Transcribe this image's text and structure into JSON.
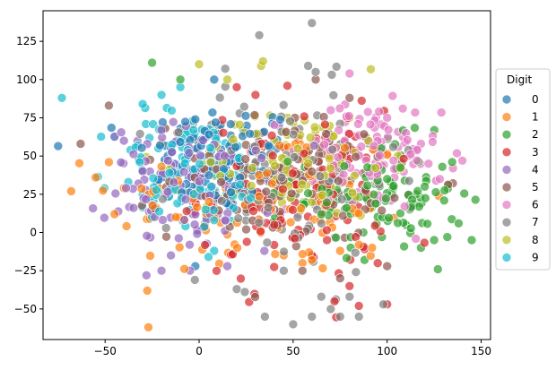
{
  "chart_data": {
    "type": "scatter",
    "title": "",
    "xlabel": "",
    "ylabel": "",
    "xlim": [
      -83,
      155
    ],
    "ylim": [
      -70,
      145
    ],
    "x_ticks": [
      -50,
      0,
      50,
      100,
      150
    ],
    "y_ticks": [
      -50,
      -25,
      0,
      25,
      50,
      75,
      100,
      125
    ],
    "grid": false,
    "legend": {
      "title": "Digit",
      "placement": "right-outside"
    },
    "series": [
      {
        "name": "0",
        "color": "#1f77b4",
        "center": [
          10,
          48
        ],
        "spread": [
          22,
          18
        ],
        "points": [
          [
            -2,
            -22
          ],
          [
            8,
            100
          ],
          [
            -10,
            68
          ],
          [
            3,
            62
          ],
          [
            18,
            55
          ],
          [
            -15,
            40
          ],
          [
            25,
            30
          ]
        ]
      },
      {
        "name": "1",
        "color": "#ff7f0e",
        "center": [
          35,
          20
        ],
        "spread": [
          40,
          25
        ],
        "points": [
          [
            -68,
            27
          ],
          [
            -55,
            36
          ],
          [
            -48,
            46
          ],
          [
            -45,
            12
          ],
          [
            -40,
            29
          ],
          [
            -20,
            58
          ],
          [
            60,
            -18
          ],
          [
            75,
            -12
          ],
          [
            85,
            -8
          ],
          [
            92,
            -10
          ],
          [
            55,
            -20
          ],
          [
            45,
            -15
          ]
        ]
      },
      {
        "name": "2",
        "color": "#2ca02c",
        "center": [
          95,
          25
        ],
        "spread": [
          22,
          18
        ],
        "points": [
          [
            -25,
            111
          ],
          [
            -10,
            100
          ],
          [
            145,
            -5
          ],
          [
            138,
            6
          ],
          [
            132,
            -3
          ],
          [
            127,
            -24
          ],
          [
            125,
            -5
          ],
          [
            118,
            -10
          ],
          [
            112,
            15
          ],
          [
            88,
            -18
          ],
          [
            100,
            35
          ],
          [
            110,
            5
          ],
          [
            120,
            30
          ]
        ]
      },
      {
        "name": "3",
        "color": "#d62728",
        "center": [
          50,
          25
        ],
        "spread": [
          25,
          28
        ],
        "points": [
          [
            20,
            95
          ],
          [
            30,
            90
          ],
          [
            85,
            -48
          ],
          [
            72,
            -45
          ],
          [
            100,
            -47
          ],
          [
            80,
            -35
          ],
          [
            60,
            -15
          ],
          [
            95,
            -20
          ],
          [
            40,
            5
          ],
          [
            68,
            -5
          ]
        ]
      },
      {
        "name": "4",
        "color": "#9467bd",
        "center": [
          -5,
          30
        ],
        "spread": [
          22,
          20
        ],
        "points": [
          [
            -28,
            -28
          ],
          [
            -20,
            -25
          ],
          [
            -15,
            -15
          ],
          [
            -5,
            -8
          ],
          [
            15,
            -22
          ],
          [
            -30,
            40
          ],
          [
            -40,
            60
          ],
          [
            10,
            12
          ],
          [
            -25,
            18
          ]
        ]
      },
      {
        "name": "5",
        "color": "#8c564b",
        "center": [
          45,
          35
        ],
        "spread": [
          30,
          20
        ],
        "points": [
          [
            -63,
            58
          ],
          [
            -48,
            83
          ],
          [
            62,
            100
          ],
          [
            80,
            88
          ],
          [
            40,
            15
          ],
          [
            55,
            -25
          ],
          [
            75,
            -30
          ],
          [
            100,
            -22
          ],
          [
            30,
            45
          ]
        ]
      },
      {
        "name": "6",
        "color": "#e377c2",
        "center": [
          88,
          50
        ],
        "spread": [
          20,
          18
        ],
        "points": [
          [
            140,
            47
          ],
          [
            135,
            42
          ],
          [
            128,
            35
          ],
          [
            118,
            58
          ],
          [
            80,
            104
          ],
          [
            100,
            75
          ],
          [
            110,
            65
          ],
          [
            70,
            80
          ],
          [
            90,
            20
          ],
          [
            122,
            45
          ]
        ]
      },
      {
        "name": "7",
        "color": "#7f7f7f",
        "center": [
          45,
          35
        ],
        "spread": [
          30,
          30
        ],
        "points": [
          [
            60,
            137
          ],
          [
            32,
            129
          ],
          [
            62,
            105
          ],
          [
            58,
            109
          ],
          [
            35,
            -55
          ],
          [
            50,
            -60
          ],
          [
            60,
            -55
          ],
          [
            70,
            -50
          ],
          [
            75,
            -55
          ],
          [
            85,
            -55
          ],
          [
            98,
            -47
          ],
          [
            80,
            -42
          ],
          [
            20,
            -37
          ],
          [
            65,
            -42
          ],
          [
            45,
            -25
          ]
        ]
      },
      {
        "name": "8",
        "color": "#bcbd22",
        "center": [
          50,
          45
        ],
        "spread": [
          25,
          18
        ],
        "points": [
          [
            0,
            110
          ],
          [
            33,
            109
          ],
          [
            34,
            112
          ],
          [
            15,
            100
          ],
          [
            80,
            75
          ],
          [
            90,
            60
          ],
          [
            60,
            20
          ],
          [
            70,
            30
          ],
          [
            40,
            60
          ]
        ]
      },
      {
        "name": "9",
        "color": "#17becf",
        "center": [
          -5,
          40
        ],
        "spread": [
          20,
          20
        ],
        "points": [
          [
            -73,
            88
          ],
          [
            -30,
            84
          ],
          [
            -20,
            90
          ],
          [
            -10,
            95
          ],
          [
            5,
            -16
          ],
          [
            8,
            -12
          ],
          [
            -30,
            25
          ],
          [
            -25,
            10
          ],
          [
            -15,
            55
          ],
          [
            10,
            40
          ]
        ]
      }
    ]
  }
}
